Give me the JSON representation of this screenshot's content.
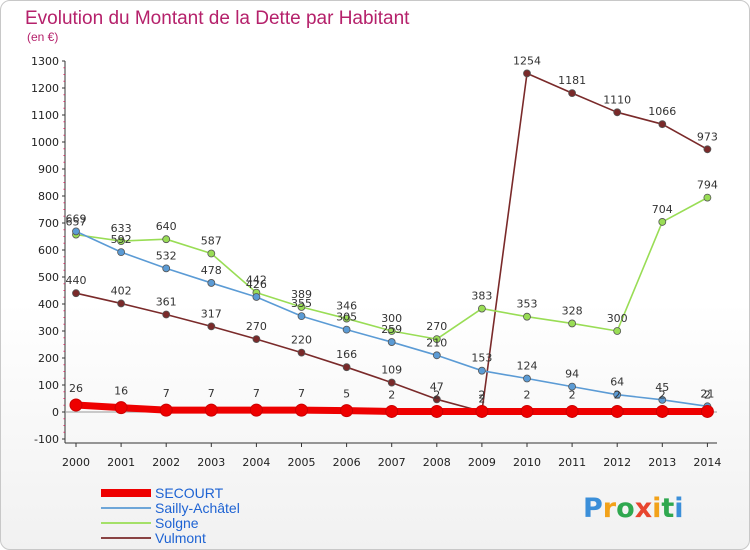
{
  "chart_data": {
    "type": "line",
    "title": "Evolution du Montant de la Dette par Habitant",
    "subtitle": "(en €)",
    "xlabel": "",
    "ylabel": "",
    "ylim": [
      -100,
      1300
    ],
    "yticks": [
      "-100",
      "0",
      "100",
      "200",
      "300",
      "400",
      "500",
      "600",
      "700",
      "800",
      "900",
      "1000",
      "1100",
      "1200",
      "1300"
    ],
    "categories": [
      "2000",
      "2001",
      "2002",
      "2003",
      "2004",
      "2005",
      "2006",
      "2007",
      "2008",
      "2009",
      "2010",
      "2011",
      "2012",
      "2013",
      "2014"
    ],
    "grid": false,
    "legend_position": "bottom-left",
    "series": [
      {
        "name": "SECOURT",
        "color": "#ee0000",
        "values": [
          26,
          16,
          7,
          7,
          7,
          7,
          5,
          2,
          2,
          2,
          2,
          2,
          2,
          2,
          2
        ],
        "labels": [
          "26",
          "16",
          "7",
          "7",
          "7",
          "7",
          "5",
          "2",
          "2",
          "2",
          "2",
          "2",
          "2",
          "2",
          "2"
        ]
      },
      {
        "name": "Sailly-Achâtel",
        "color": "#5b9bd5",
        "values": [
          669,
          592,
          532,
          478,
          426,
          355,
          305,
          259,
          210,
          153,
          124,
          94,
          64,
          45,
          21
        ],
        "labels": [
          "669",
          "592",
          "532",
          "478",
          "426",
          "355",
          "305",
          "259",
          "210",
          "153",
          "124",
          "94",
          "64",
          "45",
          "21"
        ]
      },
      {
        "name": "Solgne",
        "color": "#99dd55",
        "values": [
          657,
          633,
          640,
          587,
          442,
          389,
          346,
          300,
          270,
          383,
          353,
          328,
          300,
          704,
          794
        ],
        "labels": [
          "657",
          "633",
          "640",
          "587",
          "442",
          "389",
          "346",
          "300",
          "270",
          "383",
          "353",
          "328",
          "300",
          "704",
          "794"
        ]
      },
      {
        "name": "Vulmont",
        "color": "#7a2a2a",
        "values": [
          440,
          402,
          361,
          317,
          270,
          220,
          166,
          109,
          47,
          2,
          1254,
          1181,
          1110,
          1066,
          973
        ],
        "labels": [
          "440",
          "402",
          "361",
          "317",
          "270",
          "220",
          "166",
          "109",
          "47",
          "2",
          "1254",
          "1181",
          "1110",
          "1066",
          "973"
        ]
      }
    ]
  },
  "logo": {
    "text": "Proxiti"
  }
}
